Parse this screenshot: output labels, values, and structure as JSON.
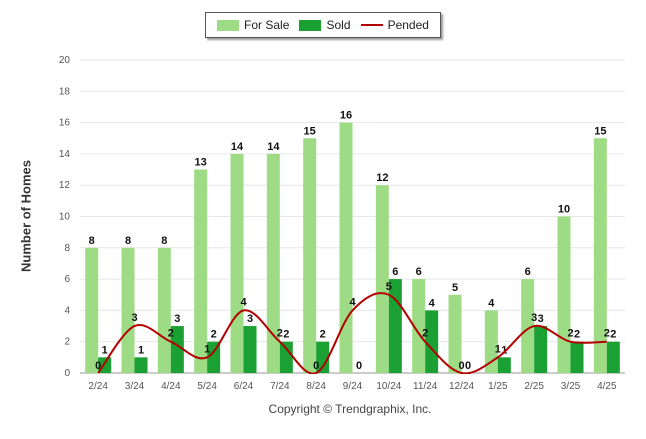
{
  "chart_data": {
    "type": "bar",
    "categories": [
      "2/24",
      "3/24",
      "4/24",
      "5/24",
      "6/24",
      "7/24",
      "8/24",
      "9/24",
      "10/24",
      "11/24",
      "12/24",
      "1/25",
      "2/25",
      "3/25",
      "4/25"
    ],
    "series": [
      {
        "name": "For Sale",
        "type": "bar",
        "color": "#9ddc84",
        "values": [
          8,
          8,
          8,
          13,
          14,
          14,
          15,
          16,
          12,
          6,
          5,
          4,
          6,
          10,
          15
        ]
      },
      {
        "name": "Sold",
        "type": "bar",
        "color": "#1aa033",
        "values": [
          1,
          1,
          3,
          2,
          3,
          2,
          2,
          0,
          6,
          4,
          0,
          1,
          3,
          2,
          2
        ]
      },
      {
        "name": "Pended",
        "type": "line",
        "color": "#b30000",
        "values": [
          0,
          3,
          2,
          1,
          4,
          2,
          0,
          4,
          5,
          2,
          0,
          1,
          3,
          2,
          2
        ]
      }
    ],
    "ylabel": "Number of Homes",
    "ylim": [
      0,
      20
    ],
    "yticks": [
      0,
      2,
      4,
      6,
      8,
      10,
      12,
      14,
      16,
      18,
      20
    ],
    "grid": true,
    "legend_placement": "top-center"
  },
  "footer": {
    "copyright": "Copyright © Trendgraphix, Inc."
  }
}
